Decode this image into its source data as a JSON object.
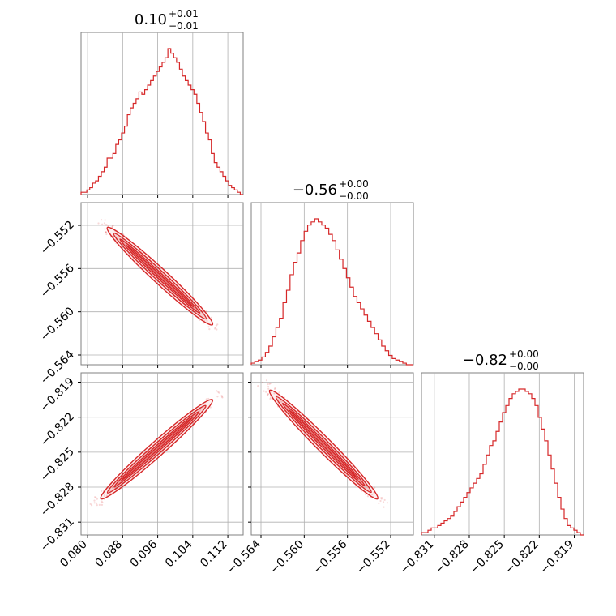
{
  "chart_data": {
    "type": "corner",
    "color": "#d62728",
    "grid": true,
    "titles": [
      {
        "value": "0.10",
        "plus": "+0.01",
        "minus": "−0.01"
      },
      {
        "value": "−0.56",
        "plus": "+0.00",
        "minus": "−0.00"
      },
      {
        "value": "−0.82",
        "plus": "+0.00",
        "minus": "−0.00"
      }
    ],
    "ticks": {
      "p0": {
        "values": [
          0.08,
          0.088,
          0.096,
          0.104,
          0.112
        ],
        "labels": [
          "0.080",
          "0.088",
          "0.096",
          "0.104",
          "0.112"
        ]
      },
      "p1": {
        "values": [
          -0.564,
          -0.56,
          -0.556,
          -0.552
        ],
        "labels": [
          "−0.564",
          "−0.560",
          "−0.556",
          "−0.552"
        ]
      },
      "p1_left": {
        "values": [
          -0.552,
          -0.556,
          -0.56,
          -0.564
        ],
        "labels": [
          "−0.552",
          "−0.556",
          "−0.560",
          "−0.564"
        ]
      },
      "p2": {
        "values": [
          -0.831,
          -0.828,
          -0.825,
          -0.822,
          -0.819
        ],
        "labels": [
          "−0.831",
          "−0.828",
          "−0.825",
          "−0.822",
          "−0.819"
        ]
      },
      "p2_left": {
        "values": [
          -0.819,
          -0.822,
          -0.825,
          -0.828,
          -0.831
        ],
        "labels": [
          "−0.819",
          "−0.822",
          "−0.825",
          "−0.828",
          "−0.831"
        ]
      }
    },
    "ranges": {
      "p0": [
        0.0785,
        0.1155
      ],
      "p1": [
        -0.5649,
        -0.5499
      ],
      "p2": [
        -0.8321,
        -0.8182
      ]
    },
    "histograms": {
      "p0": [
        1,
        1,
        2,
        3,
        5,
        6,
        8,
        10,
        12,
        16,
        16,
        18,
        22,
        24,
        27,
        30,
        35,
        38,
        40,
        42,
        45,
        44,
        46,
        48,
        50,
        52,
        54,
        56,
        58,
        60,
        64,
        62,
        60,
        58,
        55,
        52,
        50,
        48,
        46,
        44,
        40,
        36,
        32,
        27,
        24,
        18,
        14,
        12,
        10,
        8,
        6,
        4,
        3,
        2,
        1,
        0
      ],
      "p1": [
        1,
        2,
        3,
        5,
        8,
        12,
        18,
        24,
        30,
        40,
        48,
        58,
        66,
        72,
        80,
        86,
        90,
        92,
        94,
        92,
        90,
        88,
        84,
        80,
        74,
        68,
        62,
        56,
        50,
        44,
        40,
        36,
        32,
        28,
        24,
        20,
        16,
        12,
        9,
        6,
        4,
        3,
        2,
        1,
        0,
        0
      ],
      "p2": [
        1,
        1,
        2,
        3,
        3,
        4,
        5,
        6,
        7,
        8,
        10,
        12,
        14,
        16,
        18,
        20,
        22,
        24,
        26,
        30,
        34,
        38,
        40,
        44,
        48,
        52,
        55,
        58,
        60,
        61,
        62,
        62,
        61,
        60,
        58,
        55,
        50,
        45,
        40,
        34,
        28,
        22,
        16,
        11,
        7,
        4,
        3,
        2,
        1,
        0
      ]
    }
  }
}
